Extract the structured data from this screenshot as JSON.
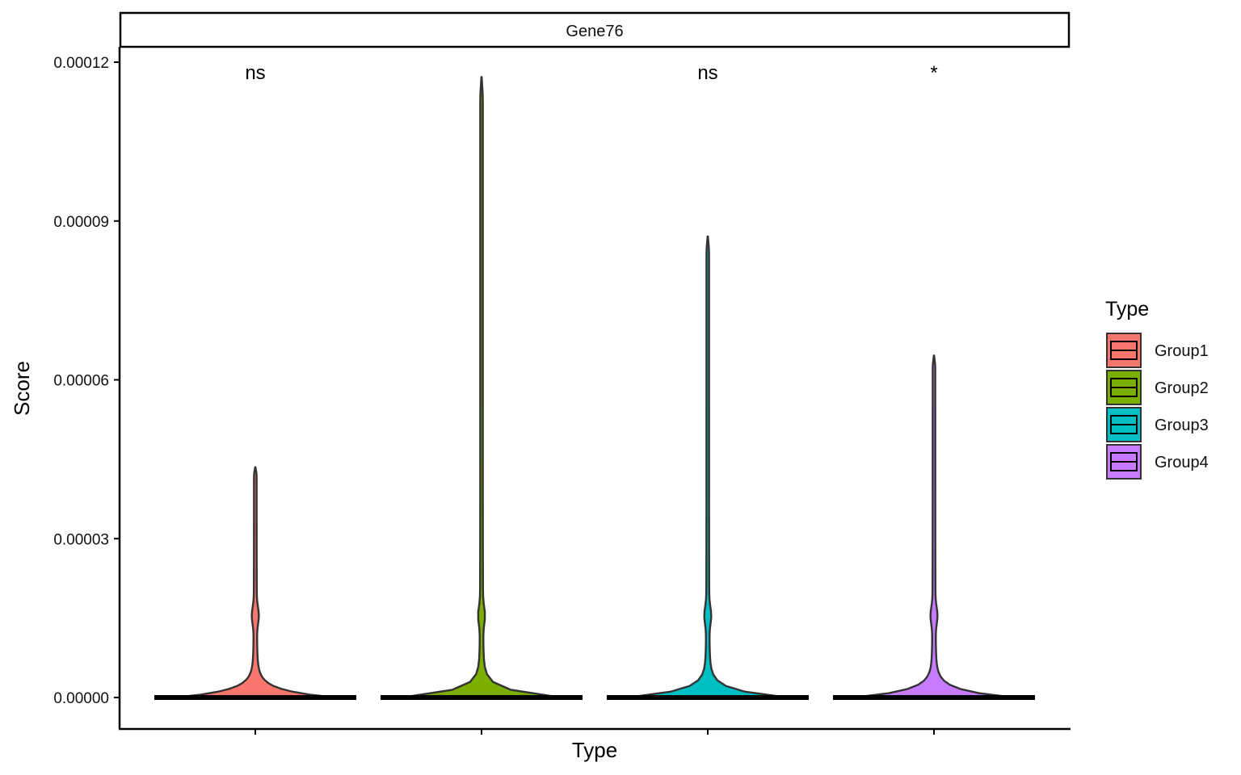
{
  "chart_data": {
    "type": "violin",
    "facet": "Gene76",
    "xlabel": "Type",
    "ylabel": "Score",
    "ylim": [
      0,
      0.00012
    ],
    "y_ticks": [
      0,
      3e-05,
      6e-05,
      9e-05,
      0.00012
    ],
    "y_tick_labels": [
      "0.00000",
      "0.00003",
      "0.00006",
      "0.00009",
      "0.00012"
    ],
    "categories": [
      "Group1",
      "Group2",
      "Group3",
      "Group4"
    ],
    "x_tick_labels": [
      "",
      "",
      "",
      ""
    ],
    "legend": {
      "title": "Type",
      "position": "right"
    },
    "grid": false,
    "series": [
      {
        "name": "Group1",
        "color": "#F8766D",
        "max": 4.35e-05,
        "median": 0,
        "significance": "ns"
      },
      {
        "name": "Group2",
        "color": "#7CAE00",
        "max": 0.0001172,
        "median": 0,
        "significance": ""
      },
      {
        "name": "Group3",
        "color": "#00BFC4",
        "max": 8.71e-05,
        "median": 0,
        "significance": "ns"
      },
      {
        "name": "Group4",
        "color": "#C77CFF",
        "max": 6.46e-05,
        "median": 0,
        "significance": "*"
      }
    ]
  }
}
